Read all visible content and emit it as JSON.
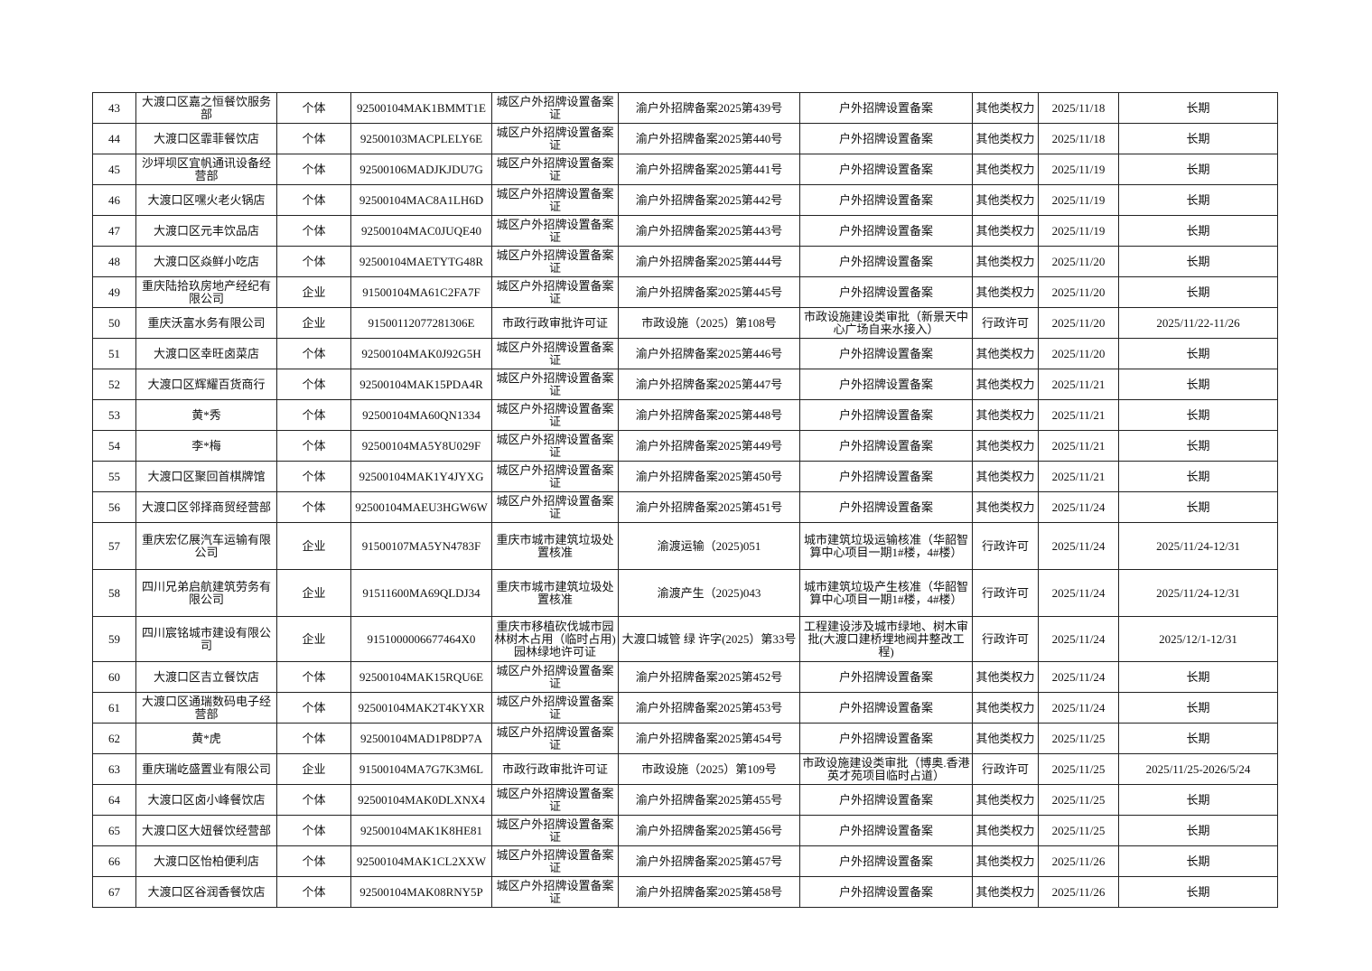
{
  "rows": [
    [
      "43",
      "大渡口区嘉之恒餐饮服务部",
      "个体",
      "92500104MAK1BMMT1E",
      "城区户外招牌设置备案证",
      "渝户外招牌备案2025第439号",
      "户外招牌设置备案",
      "其他类权力",
      "2025/11/18",
      "长期"
    ],
    [
      "44",
      "大渡口区霏菲餐饮店",
      "个体",
      "92500103MACPLELY6E",
      "城区户外招牌设置备案证",
      "渝户外招牌备案2025第440号",
      "户外招牌设置备案",
      "其他类权力",
      "2025/11/18",
      "长期"
    ],
    [
      "45",
      "沙坪坝区宜帆通讯设备经营部",
      "个体",
      "92500106MADJKJDU7G",
      "城区户外招牌设置备案证",
      "渝户外招牌备案2025第441号",
      "户外招牌设置备案",
      "其他类权力",
      "2025/11/19",
      "长期"
    ],
    [
      "46",
      "大渡口区嘿火老火锅店",
      "个体",
      "92500104MAC8A1LH6D",
      "城区户外招牌设置备案证",
      "渝户外招牌备案2025第442号",
      "户外招牌设置备案",
      "其他类权力",
      "2025/11/19",
      "长期"
    ],
    [
      "47",
      "大渡口区元丰饮品店",
      "个体",
      "92500104MAC0JUQE40",
      "城区户外招牌设置备案证",
      "渝户外招牌备案2025第443号",
      "户外招牌设置备案",
      "其他类权力",
      "2025/11/19",
      "长期"
    ],
    [
      "48",
      "大渡口区焱鲜小吃店",
      "个体",
      "92500104MAETYTG48R",
      "城区户外招牌设置备案证",
      "渝户外招牌备案2025第444号",
      "户外招牌设置备案",
      "其他类权力",
      "2025/11/20",
      "长期"
    ],
    [
      "49",
      "重庆陆拾玖房地产经纪有限公司",
      "企业",
      "91500104MA61C2FA7F",
      "城区户外招牌设置备案证",
      "渝户外招牌备案2025第445号",
      "户外招牌设置备案",
      "其他类权力",
      "2025/11/20",
      "长期"
    ],
    [
      "50",
      "重庆沃富水务有限公司",
      "企业",
      "91500112077281306E",
      "市政行政审批许可证",
      "市政设施（2025）第108号",
      "市政设施建设类审批（新景天中心广场自来水接入）",
      "行政许可",
      "2025/11/20",
      "2025/11/22-11/26"
    ],
    [
      "51",
      "大渡口区幸旺卤菜店",
      "个体",
      "92500104MAK0J92G5H",
      "城区户外招牌设置备案证",
      "渝户外招牌备案2025第446号",
      "户外招牌设置备案",
      "其他类权力",
      "2025/11/20",
      "长期"
    ],
    [
      "52",
      "大渡口区辉耀百货商行",
      "个体",
      "92500104MAK15PDA4R",
      "城区户外招牌设置备案证",
      "渝户外招牌备案2025第447号",
      "户外招牌设置备案",
      "其他类权力",
      "2025/11/21",
      "长期"
    ],
    [
      "53",
      "黄*秀",
      "个体",
      "92500104MA60QN1334",
      "城区户外招牌设置备案证",
      "渝户外招牌备案2025第448号",
      "户外招牌设置备案",
      "其他类权力",
      "2025/11/21",
      "长期"
    ],
    [
      "54",
      "李*梅",
      "个体",
      "92500104MA5Y8U029F",
      "城区户外招牌设置备案证",
      "渝户外招牌备案2025第449号",
      "户外招牌设置备案",
      "其他类权力",
      "2025/11/21",
      "长期"
    ],
    [
      "55",
      "大渡口区聚回首棋牌馆",
      "个体",
      "92500104MAK1Y4JYXG",
      "城区户外招牌设置备案证",
      "渝户外招牌备案2025第450号",
      "户外招牌设置备案",
      "其他类权力",
      "2025/11/21",
      "长期"
    ],
    [
      "56",
      "大渡口区邻择商贸经营部",
      "个体",
      "92500104MAEU3HGW6W",
      "城区户外招牌设置备案证",
      "渝户外招牌备案2025第451号",
      "户外招牌设置备案",
      "其他类权力",
      "2025/11/24",
      "长期"
    ],
    [
      "57",
      "重庆宏亿展汽车运输有限公司",
      "企业",
      "91500107MA5YN4783F",
      "重庆市城市建筑垃圾处置核准",
      "渝渡运输（2025)051",
      "城市建筑垃圾运输核准（华韶智算中心项目一期1#楼，4#楼）",
      "行政许可",
      "2025/11/24",
      "2025/11/24-12/31"
    ],
    [
      "58",
      "四川兄弟启航建筑劳务有限公司",
      "企业",
      "91511600MA69QLDJ34",
      "重庆市城市建筑垃圾处置核准",
      "渝渡产生（2025)043",
      "城市建筑垃圾产生核准（华韶智算中心项目一期1#楼，4#楼）",
      "行政许可",
      "2025/11/24",
      "2025/11/24-12/31"
    ],
    [
      "59",
      "四川宸铭城市建设有限公司",
      "企业",
      "9151000006677464X0",
      "重庆市移植砍伐城市园林树木占用（临时占用)园林绿地许可证",
      "大渡口城管 绿 许字(2025）第33号",
      "工程建设涉及城市绿地、树木审批(大渡口建桥埋地阀井整改工程)",
      "行政许可",
      "2025/11/24",
      "2025/12/1-12/31"
    ],
    [
      "60",
      "大渡口区吉立餐饮店",
      "个体",
      "92500104MAK15RQU6E",
      "城区户外招牌设置备案证",
      "渝户外招牌备案2025第452号",
      "户外招牌设置备案",
      "其他类权力",
      "2025/11/24",
      "长期"
    ],
    [
      "61",
      "大渡口区通瑞数码电子经营部",
      "个体",
      "92500104MAK2T4KYXR",
      "城区户外招牌设置备案证",
      "渝户外招牌备案2025第453号",
      "户外招牌设置备案",
      "其他类权力",
      "2025/11/24",
      "长期"
    ],
    [
      "62",
      "黄*虎",
      "个体",
      "92500104MAD1P8DP7A",
      "城区户外招牌设置备案证",
      "渝户外招牌备案2025第454号",
      "户外招牌设置备案",
      "其他类权力",
      "2025/11/25",
      "长期"
    ],
    [
      "63",
      "重庆瑞屹盛置业有限公司",
      "企业",
      "91500104MA7G7K3M6L",
      "市政行政审批许可证",
      "市政设施（2025）第109号",
      "市政设施建设类审批（博奥.香港英才苑项目临时占道）",
      "行政许可",
      "2025/11/25",
      "2025/11/25-2026/5/24"
    ],
    [
      "64",
      "大渡口区卤小峰餐饮店",
      "个体",
      "92500104MAK0DLXNX4",
      "城区户外招牌设置备案证",
      "渝户外招牌备案2025第455号",
      "户外招牌设置备案",
      "其他类权力",
      "2025/11/25",
      "长期"
    ],
    [
      "65",
      "大渡口区大妞餐饮经营部",
      "个体",
      "92500104MAK1K8HE81",
      "城区户外招牌设置备案证",
      "渝户外招牌备案2025第456号",
      "户外招牌设置备案",
      "其他类权力",
      "2025/11/25",
      "长期"
    ],
    [
      "66",
      "大渡口区怡柏便利店",
      "个体",
      "92500104MAK1CL2XXW",
      "城区户外招牌设置备案证",
      "渝户外招牌备案2025第457号",
      "户外招牌设置备案",
      "其他类权力",
      "2025/11/26",
      "长期"
    ],
    [
      "67",
      "大渡口区谷润香餐饮店",
      "个体",
      "92500104MAK08RNY5P",
      "城区户外招牌设置备案证",
      "渝户外招牌备案2025第458号",
      "户外招牌设置备案",
      "其他类权力",
      "2025/11/26",
      "长期"
    ]
  ]
}
